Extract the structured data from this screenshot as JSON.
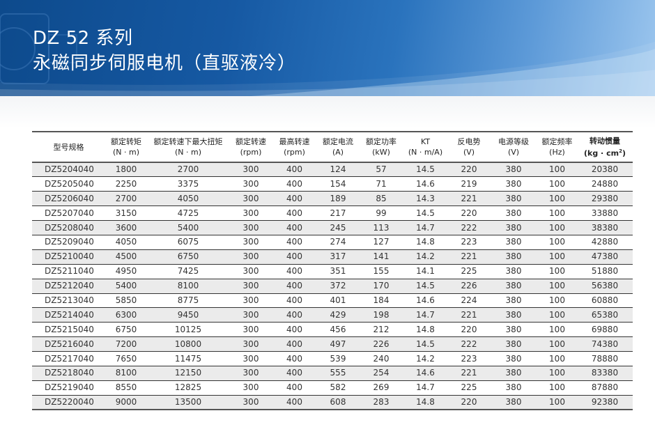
{
  "header": {
    "title": "DZ 52 系列",
    "subtitle": "永磁同步伺服电机（直驱液冷）"
  },
  "colors": {
    "banner": "#1659a3",
    "row_alt": "#ebebeb",
    "rule": "#555555"
  },
  "table": {
    "columns": [
      {
        "line1": "型号规格",
        "line2": ""
      },
      {
        "line1": "额定转矩",
        "line2": "(N · m)"
      },
      {
        "line1": "额定转速下最大扭矩",
        "line2": "(N · m)"
      },
      {
        "line1": "额定转速",
        "line2": "(rpm)"
      },
      {
        "line1": "最高转速",
        "line2": "(rpm)"
      },
      {
        "line1": "额定电流",
        "line2": "(A)"
      },
      {
        "line1": "额定功率",
        "line2": "(kW)"
      },
      {
        "line1": "KT",
        "line2": "(N · m/A)"
      },
      {
        "line1": "反电势",
        "line2": "(V)"
      },
      {
        "line1": "电源等级",
        "line2": "(V)"
      },
      {
        "line1": "额定频率",
        "line2": "(Hz)"
      },
      {
        "line1": "转动惯量",
        "line2": "(kg · cm",
        "sup": "2",
        "line2_end": ")"
      }
    ],
    "rows": [
      [
        "DZ5204040",
        "1800",
        "2700",
        "300",
        "400",
        "124",
        "57",
        "14.5",
        "220",
        "380",
        "100",
        "20380"
      ],
      [
        "DZ5205040",
        "2250",
        "3375",
        "300",
        "400",
        "154",
        "71",
        "14.6",
        "219",
        "380",
        "100",
        "24880"
      ],
      [
        "DZ5206040",
        "2700",
        "4050",
        "300",
        "400",
        "189",
        "85",
        "14.3",
        "221",
        "380",
        "100",
        "29380"
      ],
      [
        "DZ5207040",
        "3150",
        "4725",
        "300",
        "400",
        "217",
        "99",
        "14.5",
        "220",
        "380",
        "100",
        "33880"
      ],
      [
        "DZ5208040",
        "3600",
        "5400",
        "300",
        "400",
        "245",
        "113",
        "14.7",
        "222",
        "380",
        "100",
        "38380"
      ],
      [
        "DZ5209040",
        "4050",
        "6075",
        "300",
        "400",
        "274",
        "127",
        "14.8",
        "223",
        "380",
        "100",
        "42880"
      ],
      [
        "DZ5210040",
        "4500",
        "6750",
        "300",
        "400",
        "317",
        "141",
        "14.2",
        "221",
        "380",
        "100",
        "47380"
      ],
      [
        "DZ5211040",
        "4950",
        "7425",
        "300",
        "400",
        "351",
        "155",
        "14.1",
        "225",
        "380",
        "100",
        "51880"
      ],
      [
        "DZ5212040",
        "5400",
        "8100",
        "300",
        "400",
        "372",
        "170",
        "14.5",
        "226",
        "380",
        "100",
        "56380"
      ],
      [
        "DZ5213040",
        "5850",
        "8775",
        "300",
        "400",
        "401",
        "184",
        "14.6",
        "224",
        "380",
        "100",
        "60880"
      ],
      [
        "DZ5214040",
        "6300",
        "9450",
        "300",
        "400",
        "429",
        "198",
        "14.7",
        "221",
        "380",
        "100",
        "65380"
      ],
      [
        "DZ5215040",
        "6750",
        "10125",
        "300",
        "400",
        "456",
        "212",
        "14.8",
        "220",
        "380",
        "100",
        "69880"
      ],
      [
        "DZ5216040",
        "7200",
        "10800",
        "300",
        "400",
        "497",
        "226",
        "14.5",
        "222",
        "380",
        "100",
        "74380"
      ],
      [
        "DZ5217040",
        "7650",
        "11475",
        "300",
        "400",
        "539",
        "240",
        "14.2",
        "223",
        "380",
        "100",
        "78880"
      ],
      [
        "DZ5218040",
        "8100",
        "12150",
        "300",
        "400",
        "555",
        "254",
        "14.6",
        "221",
        "380",
        "100",
        "83380"
      ],
      [
        "DZ5219040",
        "8550",
        "12825",
        "300",
        "400",
        "582",
        "269",
        "14.7",
        "225",
        "380",
        "100",
        "87880"
      ],
      [
        "DZ5220040",
        "9000",
        "13500",
        "300",
        "400",
        "608",
        "283",
        "14.8",
        "220",
        "380",
        "100",
        "92380"
      ]
    ]
  }
}
